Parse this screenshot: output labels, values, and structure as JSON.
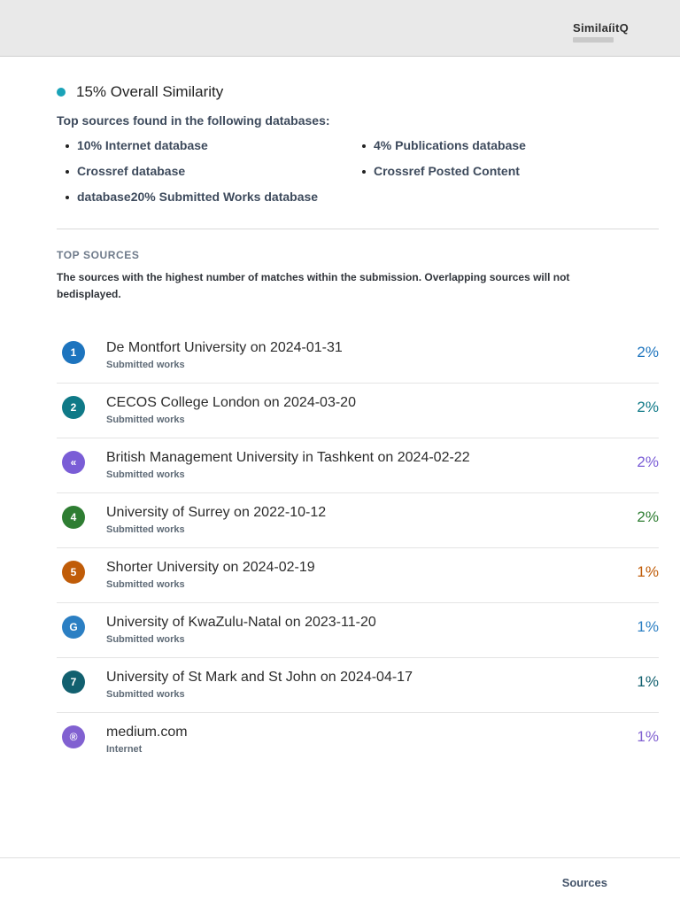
{
  "header": {
    "logo": "SimilaíitQ"
  },
  "summary": {
    "overall": "15% Overall Similarity",
    "dot_color": "#1aa3b8",
    "databases_heading": "Top sources found in the following databases:",
    "databases": [
      "10% Internet database",
      "4% Publications database",
      "Crossref database",
      "Crossref Posted Content",
      "database20% Submitted Works database"
    ]
  },
  "top_sources": {
    "heading": "TOP SOURCES",
    "description": "The sources with the highest number of matches within the submission. Overlapping sources will not bedisplayed.",
    "items": [
      {
        "badge": "1",
        "color": "#1d74be",
        "title": "De Montfort University on 2024-01-31",
        "type": "Submitted works",
        "percent": "2%"
      },
      {
        "badge": "2",
        "color": "#0f7987",
        "title": "CECOS College London on 2024-03-20",
        "type": "Submitted works",
        "percent": "2%"
      },
      {
        "badge": "«",
        "color": "#7a5dd6",
        "title": "British Management University in Tashkent on 2024-02-22",
        "type": "Submitted works",
        "percent": "2%"
      },
      {
        "badge": "4",
        "color": "#2e7d32",
        "title": "University of Surrey on 2022-10-12",
        "type": "Submitted works",
        "percent": "2%"
      },
      {
        "badge": "5",
        "color": "#c05c08",
        "title": "Shorter University on 2024-02-19",
        "type": "Submitted works",
        "percent": "1%"
      },
      {
        "badge": "G",
        "color": "#2b7fc3",
        "title": "University of KwaZulu-Natal on 2023-11-20",
        "type": "Submitted works",
        "percent": "1%"
      },
      {
        "badge": "7",
        "color": "#12606f",
        "title": "University of St Mark and St John on 2024-04-17",
        "type": "Submitted works",
        "percent": "1%"
      },
      {
        "badge": "®",
        "color": "#8161d1",
        "title": "medium.com",
        "type": "Internet",
        "percent": "1%"
      }
    ]
  },
  "footer": {
    "label": "Sources"
  }
}
